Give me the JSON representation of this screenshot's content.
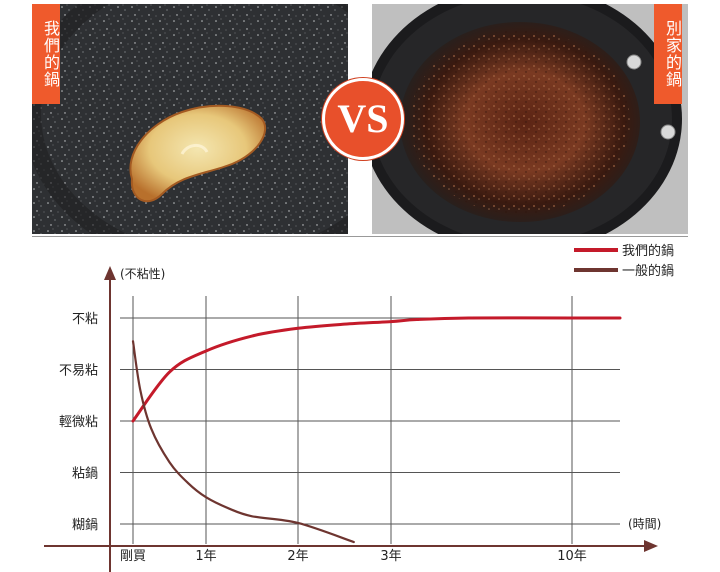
{
  "labels": {
    "ours_tag": "我們的鍋",
    "others_tag": "別家的鍋",
    "vs": "VS"
  },
  "colors": {
    "ours_line": "#c41a2a",
    "general_line": "#6e3530",
    "tag_bg": "#ef5a2c",
    "axis": "#6e3530",
    "grid": "#555555"
  },
  "chart_data": {
    "type": "line",
    "ylabel": "(不粘性)",
    "xlabel": "(時間)",
    "y_categories": [
      "糊鍋",
      "粘鍋",
      "輕微粘",
      "不易粘",
      "不粘"
    ],
    "x_ticks": [
      {
        "x": 0,
        "label": "剛買"
      },
      {
        "x": 1,
        "label": "1年"
      },
      {
        "x": 2,
        "label": "2年"
      },
      {
        "x": 3,
        "label": "3年"
      },
      {
        "x": 10,
        "label": "10年"
      }
    ],
    "ylim": [
      0,
      4
    ],
    "legend_position": "top-right",
    "series": [
      {
        "name": "我們的鍋",
        "color": "#c41a2a",
        "points": [
          [
            0,
            2
          ],
          [
            0.5,
            2.95
          ],
          [
            1,
            3.36
          ],
          [
            1.5,
            3.65
          ],
          [
            2,
            3.8
          ],
          [
            2.5,
            3.88
          ],
          [
            3,
            3.93
          ],
          [
            4,
            3.97
          ],
          [
            6,
            4.0
          ],
          [
            10,
            4.0
          ],
          [
            10.5,
            4.0
          ]
        ]
      },
      {
        "name": "一般的鍋",
        "color": "#6e3530",
        "points": [
          [
            0,
            3.55
          ],
          [
            0.1,
            2.6
          ],
          [
            0.25,
            1.85
          ],
          [
            0.5,
            1.2
          ],
          [
            0.75,
            0.8
          ],
          [
            1,
            0.52
          ],
          [
            1.25,
            0.3
          ],
          [
            1.5,
            0.15
          ],
          [
            2,
            0.02
          ],
          [
            2.6,
            -0.35
          ]
        ]
      }
    ]
  }
}
